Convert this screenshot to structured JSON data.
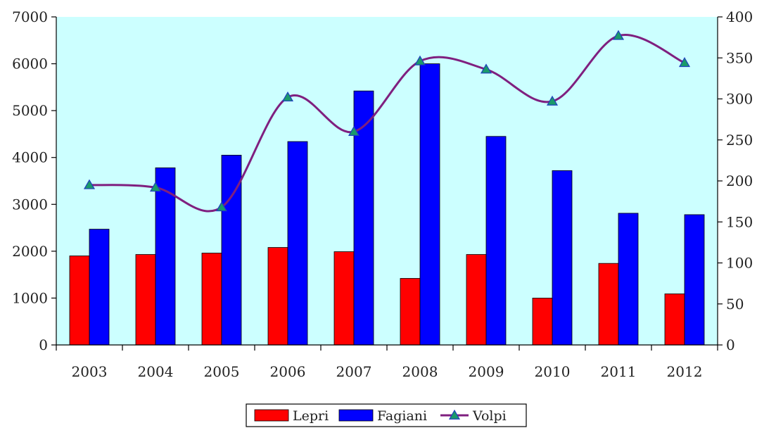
{
  "chart_data": {
    "type": "bar",
    "categories": [
      "2003",
      "2004",
      "2005",
      "2006",
      "2007",
      "2008",
      "2009",
      "2010",
      "2011",
      "2012"
    ],
    "series": [
      {
        "name": "Lepri",
        "type": "bar",
        "axis": "left",
        "color": "#ff0000",
        "values": [
          1900,
          1930,
          1960,
          2080,
          1990,
          1420,
          1930,
          1000,
          1740,
          1090
        ]
      },
      {
        "name": "Fagiani",
        "type": "bar",
        "axis": "left",
        "color": "#0000ff",
        "values": [
          2470,
          3780,
          4050,
          4340,
          5420,
          6000,
          4450,
          3720,
          2810,
          2780
        ]
      },
      {
        "name": "Volpi",
        "type": "line",
        "axis": "right",
        "color": "#7f1f7f",
        "marker_color": "#1a9a6a",
        "values": [
          195,
          192,
          168,
          302,
          260,
          346,
          336,
          297,
          377,
          344
        ]
      }
    ],
    "ylim_left": [
      0,
      7000
    ],
    "yticks_left": [
      "0",
      "1000",
      "2000",
      "3000",
      "4000",
      "5000",
      "6000",
      "7000"
    ],
    "ylim_right": [
      0,
      400
    ],
    "yticks_right": [
      "0",
      "50",
      "100",
      "150",
      "200",
      "250",
      "300",
      "350",
      "400"
    ],
    "plot_background": "#ccffff",
    "legend_position": "bottom-center",
    "title": "",
    "xlabel": "",
    "ylabel": ""
  }
}
